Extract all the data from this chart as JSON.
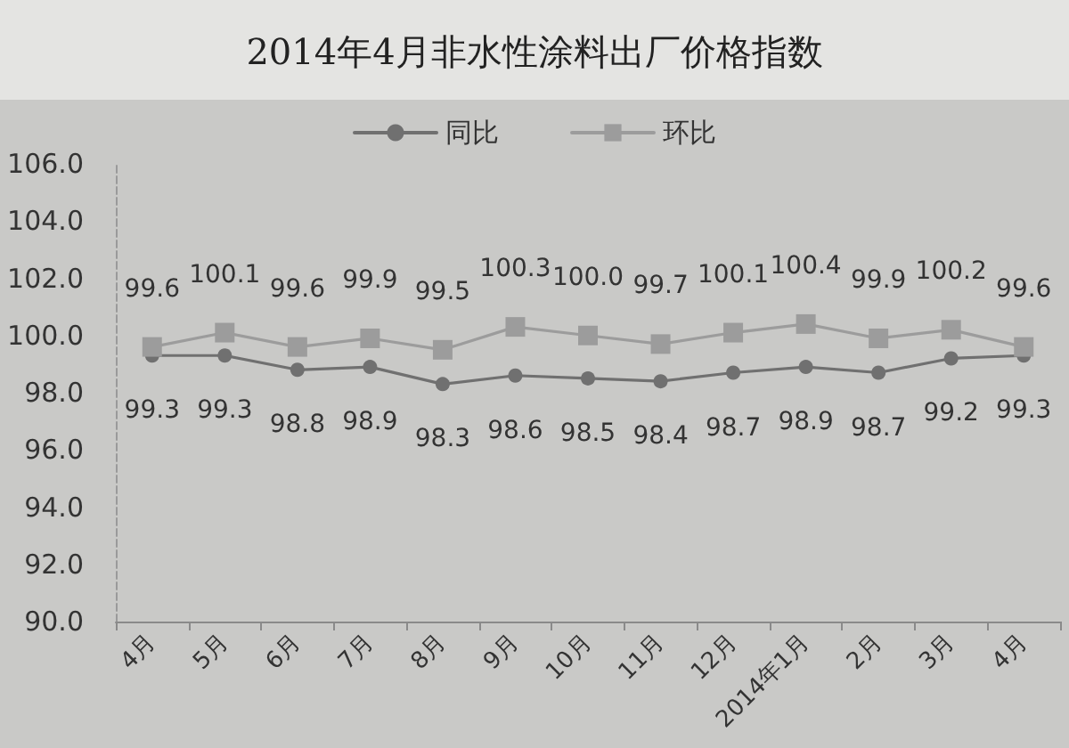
{
  "chart_data": {
    "type": "line",
    "title": "2014年4月非水性涂料出厂价格指数",
    "categories": [
      "4月",
      "5月",
      "6月",
      "7月",
      "8月",
      "9月",
      "10月",
      "11月",
      "12月",
      "2014年1月",
      "2月",
      "3月",
      "4月"
    ],
    "series": [
      {
        "name": "同比",
        "color": "#707070",
        "marker": "circle",
        "values": [
          99.3,
          99.3,
          98.8,
          98.9,
          98.3,
          98.6,
          98.5,
          98.4,
          98.7,
          98.9,
          98.7,
          99.2,
          99.3
        ],
        "value_labels": [
          "99.3",
          "99.3",
          "98.8",
          "98.9",
          "98.3",
          "98.6",
          "98.5",
          "98.4",
          "98.7",
          "98.9",
          "98.7",
          "99.2",
          "99.3"
        ]
      },
      {
        "name": "环比",
        "color": "#9c9c9c",
        "marker": "square",
        "values": [
          99.6,
          100.1,
          99.6,
          99.9,
          99.5,
          100.3,
          100.0,
          99.7,
          100.1,
          100.4,
          99.9,
          100.2,
          99.6
        ],
        "value_labels": [
          "99.6",
          "100.1",
          "99.6",
          "99.9",
          "99.5",
          "100.3",
          "100.0",
          "99.7",
          "100.1",
          "100.4",
          "99.9",
          "100.2",
          "99.6"
        ]
      }
    ],
    "ylim": [
      90,
      106
    ],
    "yticks": [
      {
        "value": 90,
        "label": "90.0"
      },
      {
        "value": 92,
        "label": "92.0"
      },
      {
        "value": 94,
        "label": "94.0"
      },
      {
        "value": 96,
        "label": "96.0"
      },
      {
        "value": 98,
        "label": "98.0"
      },
      {
        "value": 100,
        "label": "100.0"
      },
      {
        "value": 102,
        "label": "102.0"
      },
      {
        "value": 104,
        "label": "104.0"
      },
      {
        "value": 106,
        "label": "106.0"
      }
    ],
    "legend": "top"
  }
}
